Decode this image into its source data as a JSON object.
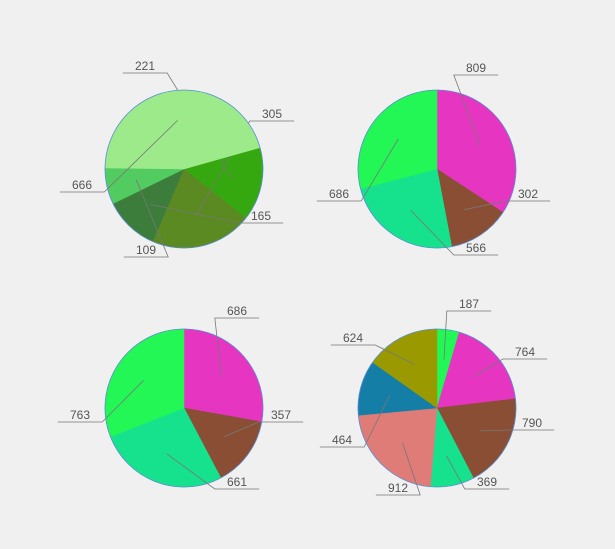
{
  "chart_data": [
    {
      "type": "pie",
      "slices": [
        {
          "label": "221",
          "value": 221,
          "color": "#36a80f"
        },
        {
          "label": "305",
          "value": 305,
          "color": "#5b8a22"
        },
        {
          "label": "165",
          "value": 165,
          "color": "#3d7d3b"
        },
        {
          "label": "109",
          "value": 109,
          "color": "#52cc60"
        },
        {
          "label": "666",
          "value": 666,
          "color": "#9cea8a"
        }
      ]
    },
    {
      "type": "pie",
      "slices": [
        {
          "label": "809",
          "value": 809,
          "color": "#e535c1"
        },
        {
          "label": "302",
          "value": 302,
          "color": "#8a4e35"
        },
        {
          "label": "566",
          "value": 566,
          "color": "#16e28d"
        },
        {
          "label": "686",
          "value": 686,
          "color": "#22f755"
        }
      ]
    },
    {
      "type": "pie",
      "slices": [
        {
          "label": "686",
          "value": 686,
          "color": "#e535c1"
        },
        {
          "label": "357",
          "value": 357,
          "color": "#8a4e35"
        },
        {
          "label": "661",
          "value": 661,
          "color": "#16e28d"
        },
        {
          "label": "763",
          "value": 763,
          "color": "#22f755"
        }
      ]
    },
    {
      "type": "pie",
      "slices": [
        {
          "label": "187",
          "value": 187,
          "color": "#22f755"
        },
        {
          "label": "764",
          "value": 764,
          "color": "#e535c1"
        },
        {
          "label": "790",
          "value": 790,
          "color": "#8a4e35"
        },
        {
          "label": "369",
          "value": 369,
          "color": "#16e28d"
        },
        {
          "label": "912",
          "value": 912,
          "color": "#e07c78"
        },
        {
          "label": "464",
          "value": 464,
          "color": "#157ea6"
        },
        {
          "label": "624",
          "value": 624,
          "color": "#9a9a00"
        }
      ]
    }
  ]
}
